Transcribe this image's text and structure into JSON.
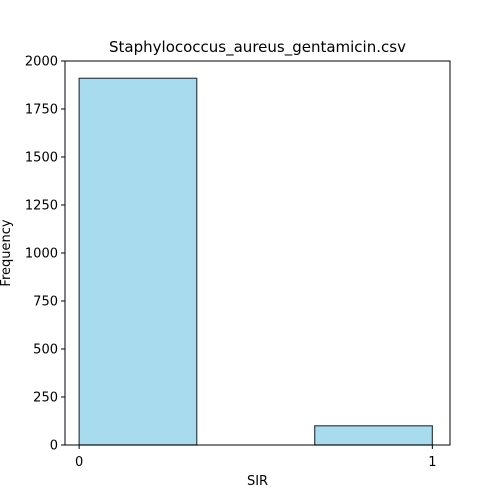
{
  "chart_data": {
    "type": "bar",
    "title": "Staphylococcus_aureus_gentamicin.csv",
    "xlabel": "SIR",
    "ylabel": "Frequency",
    "xlim": [
      -0.04,
      1.05
    ],
    "ylim": [
      0,
      2000
    ],
    "x_ticks": [
      0,
      1
    ],
    "y_ticks": [
      0,
      250,
      500,
      750,
      1000,
      1250,
      1500,
      1750,
      2000
    ],
    "bins": [
      {
        "x0": 0,
        "x1": 0.333,
        "value": 1910
      },
      {
        "x0": 0.667,
        "x1": 1,
        "value": 100
      }
    ],
    "bar_color": "#a9dbef",
    "edge_color": "#2f3f48",
    "grid": false,
    "legend": "none"
  }
}
